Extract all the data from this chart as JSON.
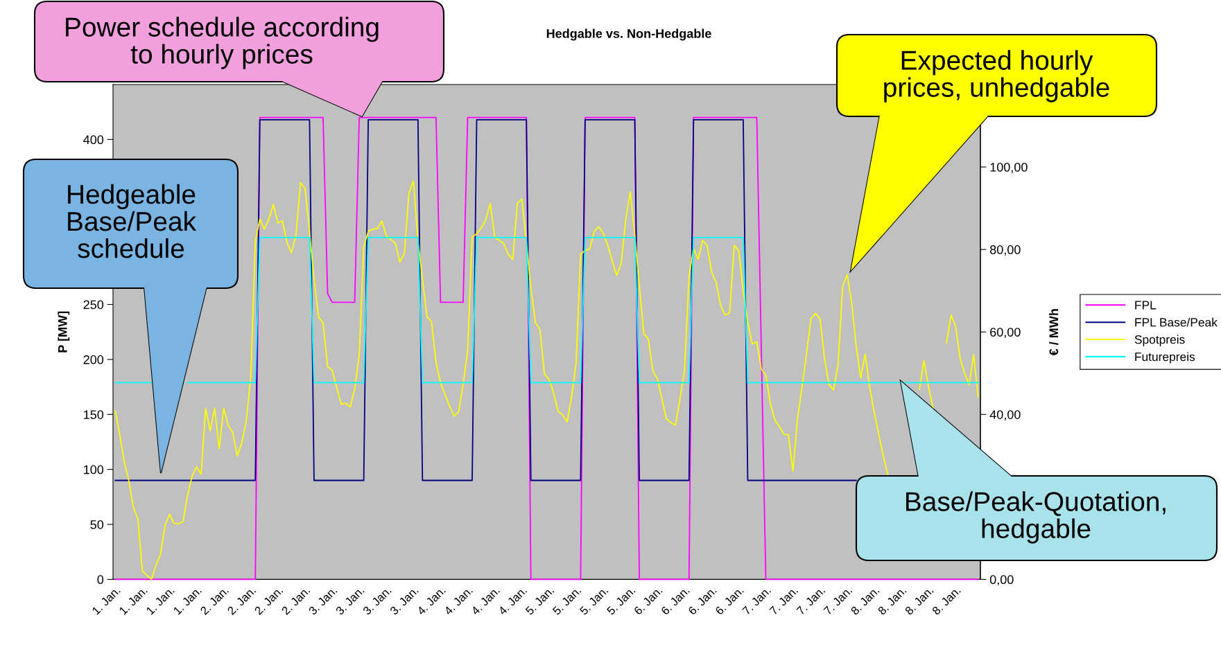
{
  "chart_data": {
    "type": "line",
    "title": "Hedgable vs. Non-Hedgable",
    "ylabel": "P [MW]",
    "y2label": "€ / MWh",
    "categories": [
      "1. Jan.",
      null,
      null,
      null,
      null,
      null,
      "1. Jan.",
      null,
      null,
      null,
      null,
      null,
      "1. Jan.",
      null,
      null,
      null,
      null,
      null,
      "1. Jan.",
      null,
      null,
      null,
      null,
      null,
      "2. Jan.",
      null,
      null,
      null,
      null,
      null,
      "2. Jan.",
      null,
      null,
      null,
      null,
      null,
      "2. Jan.",
      null,
      null,
      null,
      null,
      null,
      "2. Jan.",
      null,
      null,
      null,
      null,
      null,
      "3. Jan.",
      null,
      null,
      null,
      null,
      null,
      "3. Jan.",
      null,
      null,
      null,
      null,
      null,
      "3. Jan.",
      null,
      null,
      null,
      null,
      null,
      "3. Jan.",
      null,
      null,
      null,
      null,
      null,
      "4. Jan.",
      null,
      null,
      null,
      null,
      null,
      "4. Jan.",
      null,
      null,
      null,
      null,
      null,
      "4. Jan.",
      null,
      null,
      null,
      null,
      null,
      "4. Jan.",
      null,
      null,
      null,
      null,
      null,
      "5. Jan.",
      null,
      null,
      null,
      null,
      null,
      "5. Jan.",
      null,
      null,
      null,
      null,
      null,
      "5. Jan.",
      null,
      null,
      null,
      null,
      null,
      "5. Jan.",
      null,
      null,
      null,
      null,
      null,
      "6. Jan.",
      null,
      null,
      null,
      null,
      null,
      "6. Jan.",
      null,
      null,
      null,
      null,
      null,
      "6. Jan.",
      null,
      null,
      null,
      null,
      null,
      "6. Jan.",
      null,
      null,
      null,
      null,
      null,
      "7. Jan.",
      null,
      null,
      null,
      null,
      null,
      "7. Jan.",
      null,
      null,
      null,
      null,
      null,
      "7. Jan.",
      null,
      null,
      null,
      null,
      null,
      "7. Jan.",
      null,
      null,
      null,
      null,
      null,
      "8. Jan.",
      null,
      null,
      null,
      null,
      null,
      "8. Jan.",
      null,
      null,
      null,
      null,
      null,
      "8. Jan.",
      null,
      null,
      null,
      null,
      null,
      "8. Jan.",
      null,
      null,
      null,
      null,
      null
    ],
    "series": [
      {
        "name": "FPL",
        "color": "#ff00ff",
        "values": [
          0,
          0,
          0,
          0,
          0,
          0,
          0,
          0,
          0,
          0,
          0,
          0,
          0,
          0,
          0,
          0,
          0,
          0,
          0,
          0,
          0,
          0,
          0,
          0,
          0,
          0,
          0,
          0,
          0,
          0,
          0,
          0,
          420,
          420,
          420,
          420,
          420,
          420,
          420,
          420,
          420,
          420,
          420,
          420,
          420,
          420,
          420,
          260,
          252,
          252,
          252,
          252,
          252,
          252,
          420,
          420,
          420,
          420,
          420,
          420,
          420,
          420,
          420,
          420,
          420,
          420,
          420,
          420,
          420,
          420,
          420,
          420,
          252,
          252,
          252,
          252,
          252,
          252,
          420,
          420,
          420,
          420,
          420,
          420,
          420,
          420,
          420,
          420,
          420,
          420,
          420,
          420,
          0,
          0,
          0,
          0,
          0,
          0,
          0,
          0,
          0,
          0,
          0,
          0,
          420,
          420,
          420,
          420,
          420,
          420,
          420,
          420,
          420,
          420,
          420,
          420,
          0,
          0,
          0,
          0,
          0,
          0,
          0,
          0,
          0,
          0,
          0,
          0,
          420,
          420,
          420,
          420,
          420,
          420,
          420,
          420,
          420,
          420,
          420,
          420,
          420,
          420,
          420,
          210,
          0,
          0,
          0,
          0,
          0,
          0,
          0,
          0,
          0,
          0,
          0,
          0,
          0,
          0,
          0,
          0,
          0,
          0,
          0,
          0,
          0,
          0,
          0,
          0,
          0,
          0,
          0,
          0,
          0,
          0,
          0,
          0,
          0,
          0,
          0,
          0,
          0,
          0,
          0,
          0,
          0,
          0,
          0,
          0,
          0,
          0,
          0,
          0
        ]
      },
      {
        "name": "FPL Base/Peak",
        "color": "#000080",
        "values": [
          90,
          90,
          90,
          90,
          90,
          90,
          90,
          90,
          90,
          90,
          90,
          90,
          90,
          90,
          90,
          90,
          90,
          90,
          90,
          90,
          90,
          90,
          90,
          90,
          90,
          90,
          90,
          90,
          90,
          90,
          90,
          90,
          418,
          418,
          418,
          418,
          418,
          418,
          418,
          418,
          418,
          418,
          418,
          418,
          90,
          90,
          90,
          90,
          90,
          90,
          90,
          90,
          90,
          90,
          90,
          90,
          418,
          418,
          418,
          418,
          418,
          418,
          418,
          418,
          418,
          418,
          418,
          418,
          90,
          90,
          90,
          90,
          90,
          90,
          90,
          90,
          90,
          90,
          90,
          90,
          418,
          418,
          418,
          418,
          418,
          418,
          418,
          418,
          418,
          418,
          418,
          418,
          90,
          90,
          90,
          90,
          90,
          90,
          90,
          90,
          90,
          90,
          90,
          90,
          418,
          418,
          418,
          418,
          418,
          418,
          418,
          418,
          418,
          418,
          418,
          418,
          90,
          90,
          90,
          90,
          90,
          90,
          90,
          90,
          90,
          90,
          90,
          90,
          418,
          418,
          418,
          418,
          418,
          418,
          418,
          418,
          418,
          418,
          418,
          418,
          90,
          90,
          90,
          90,
          90,
          90,
          90,
          90,
          90,
          90,
          90,
          90,
          90,
          90,
          90,
          90,
          90,
          90,
          90,
          90,
          90,
          90,
          90,
          90,
          90,
          null,
          null,
          null,
          null,
          null,
          null,
          null,
          null,
          null,
          null,
          null,
          null,
          null,
          null,
          null,
          null,
          null,
          null,
          null,
          null,
          null,
          null,
          null,
          null,
          null,
          null,
          null
        ]
      },
      {
        "name": "Spotpreis",
        "color": "#ffff00",
        "axis": "y2",
        "values": [
          40.8,
          35,
          28.5,
          23.9,
          17.5,
          14.7,
          2,
          1,
          0,
          3.5,
          6,
          13,
          15.8,
          13.6,
          13.5,
          14,
          20.4,
          25,
          27.3,
          25.5,
          41.5,
          36,
          41.5,
          31.7,
          41.5,
          37.4,
          35.6,
          29.9,
          33.1,
          38.4,
          49.4,
          82,
          87.4,
          84.9,
          87.4,
          90.9,
          86.4,
          87,
          81.7,
          79.2,
          83.5,
          96.2,
          94.8,
          84.2,
          72.8,
          63.6,
          62.2,
          51.6,
          50.7,
          46.6,
          42.5,
          42.7,
          41.8,
          46.2,
          54.4,
          80.6,
          84.4,
          84.9,
          85.1,
          86.9,
          83.3,
          82.4,
          81.5,
          76.9,
          79.1,
          93.7,
          96.6,
          82,
          72.8,
          63.7,
          62.5,
          52.6,
          47.6,
          44.8,
          42,
          39.6,
          40.6,
          47.3,
          55.5,
          83.1,
          83.8,
          85.2,
          87.2,
          91.2,
          82.9,
          82.2,
          81.4,
          78.8,
          77.6,
          91.2,
          92.2,
          81.8,
          70.5,
          62.3,
          60.6,
          49.8,
          48.5,
          45.3,
          40.8,
          39.9,
          38.2,
          44.2,
          52.5,
          78.8,
          79.8,
          80.1,
          84.3,
          85.5,
          84,
          81,
          77.3,
          73.7,
          76.7,
          87.4,
          94,
          83.3,
          71.3,
          59.6,
          58.3,
          50.6,
          48.7,
          43.8,
          38.9,
          38,
          37.4,
          43.8,
          50.6,
          73.5,
          80.3,
          77.6,
          82.2,
          81,
          74.6,
          72,
          66.4,
          64.1,
          64.6,
          81,
          79.7,
          69.8,
          62.3,
          57.1,
          57.6,
          51,
          49.5,
          42.7,
          38.6,
          37.1,
          35.1,
          35.1,
          26.2,
          38.9,
          46.5,
          54.7,
          63.2,
          64.5,
          63.2,
          53.6,
          47.2,
          45.9,
          52.1,
          70.9,
          73.9,
          67.1,
          56.6,
          48.9,
          54.6,
          46.5,
          40.5,
          35.2,
          29.9,
          25.4,
          null,
          null,
          null,
          null,
          null,
          null,
          46.1,
          53.1,
          46.8,
          41.6,
          null,
          null,
          57.4,
          64.1,
          61.5,
          53.6,
          50,
          47.2,
          54.5,
          44.3
        ]
      },
      {
        "name": "Futurepreis",
        "color": "#00ffff",
        "axis": "y2",
        "values": [
          47.7,
          47.7,
          47.7,
          47.7,
          47.7,
          47.7,
          47.7,
          47.7,
          47.7,
          null,
          null,
          null,
          null,
          null,
          null,
          null,
          47.7,
          47.7,
          47.7,
          47.7,
          47.7,
          47.7,
          47.7,
          47.7,
          47.7,
          47.7,
          47.7,
          47.7,
          47.7,
          47.7,
          47.7,
          47.7,
          82.9,
          82.9,
          82.9,
          82.9,
          82.9,
          82.9,
          82.9,
          82.9,
          82.9,
          82.9,
          82.9,
          82.9,
          47.7,
          47.7,
          47.7,
          47.7,
          47.7,
          47.7,
          47.7,
          47.7,
          47.7,
          47.7,
          47.7,
          47.7,
          82.9,
          82.9,
          82.9,
          82.9,
          82.9,
          82.9,
          82.9,
          82.9,
          82.9,
          82.9,
          82.9,
          82.9,
          47.7,
          47.7,
          47.7,
          47.7,
          47.7,
          47.7,
          47.7,
          47.7,
          47.7,
          47.7,
          47.7,
          47.7,
          82.9,
          82.9,
          82.9,
          82.9,
          82.9,
          82.9,
          82.9,
          82.9,
          82.9,
          82.9,
          82.9,
          82.9,
          47.7,
          47.7,
          47.7,
          47.7,
          47.7,
          47.7,
          47.7,
          47.7,
          47.7,
          47.7,
          47.7,
          47.7,
          82.9,
          82.9,
          82.9,
          82.9,
          82.9,
          82.9,
          82.9,
          82.9,
          82.9,
          82.9,
          82.9,
          82.9,
          47.7,
          47.7,
          47.7,
          47.7,
          47.7,
          47.7,
          47.7,
          47.7,
          47.7,
          47.7,
          47.7,
          47.7,
          82.9,
          82.9,
          82.9,
          82.9,
          82.9,
          82.9,
          82.9,
          82.9,
          82.9,
          82.9,
          82.9,
          82.9,
          47.7,
          47.7,
          47.7,
          47.7,
          47.7,
          47.7,
          47.7,
          47.7,
          47.7,
          47.7,
          47.7,
          47.7,
          47.7,
          47.7,
          47.7,
          47.7,
          47.7,
          47.7,
          47.7,
          47.7,
          47.7,
          47.7,
          47.7,
          47.7,
          47.7,
          47.7,
          47.7,
          47.7,
          47.7,
          47.7,
          47.7,
          47.7,
          47.7,
          47.7,
          47.7,
          47.7,
          47.7,
          47.7,
          47.7,
          47.7,
          47.7,
          47.7,
          47.7,
          47.7,
          47.7,
          47.7,
          47.7,
          47.7,
          47.7,
          47.7,
          47.7,
          47.7
        ]
      }
    ],
    "ylim": [
      0,
      450
    ],
    "yticks": [
      0,
      50,
      100,
      150,
      200,
      250,
      400
    ],
    "y2lim": [
      0,
      120
    ],
    "y2ticks": [
      {
        "value": 0,
        "label": "0,00"
      },
      {
        "value": 40,
        "label": "40,00"
      },
      {
        "value": 60,
        "label": "60,00"
      },
      {
        "value": 80,
        "label": "80,00"
      },
      {
        "value": 100,
        "label": "100,00"
      }
    ],
    "legend": "right",
    "annotations": [
      "Power schedule according\nto hourly prices",
      "Hedgeable\nBase/Peak\nschedule",
      "Expected hourly\nprices, unhedgable",
      "Base/Peak-Quotation,\nhedgable"
    ]
  }
}
